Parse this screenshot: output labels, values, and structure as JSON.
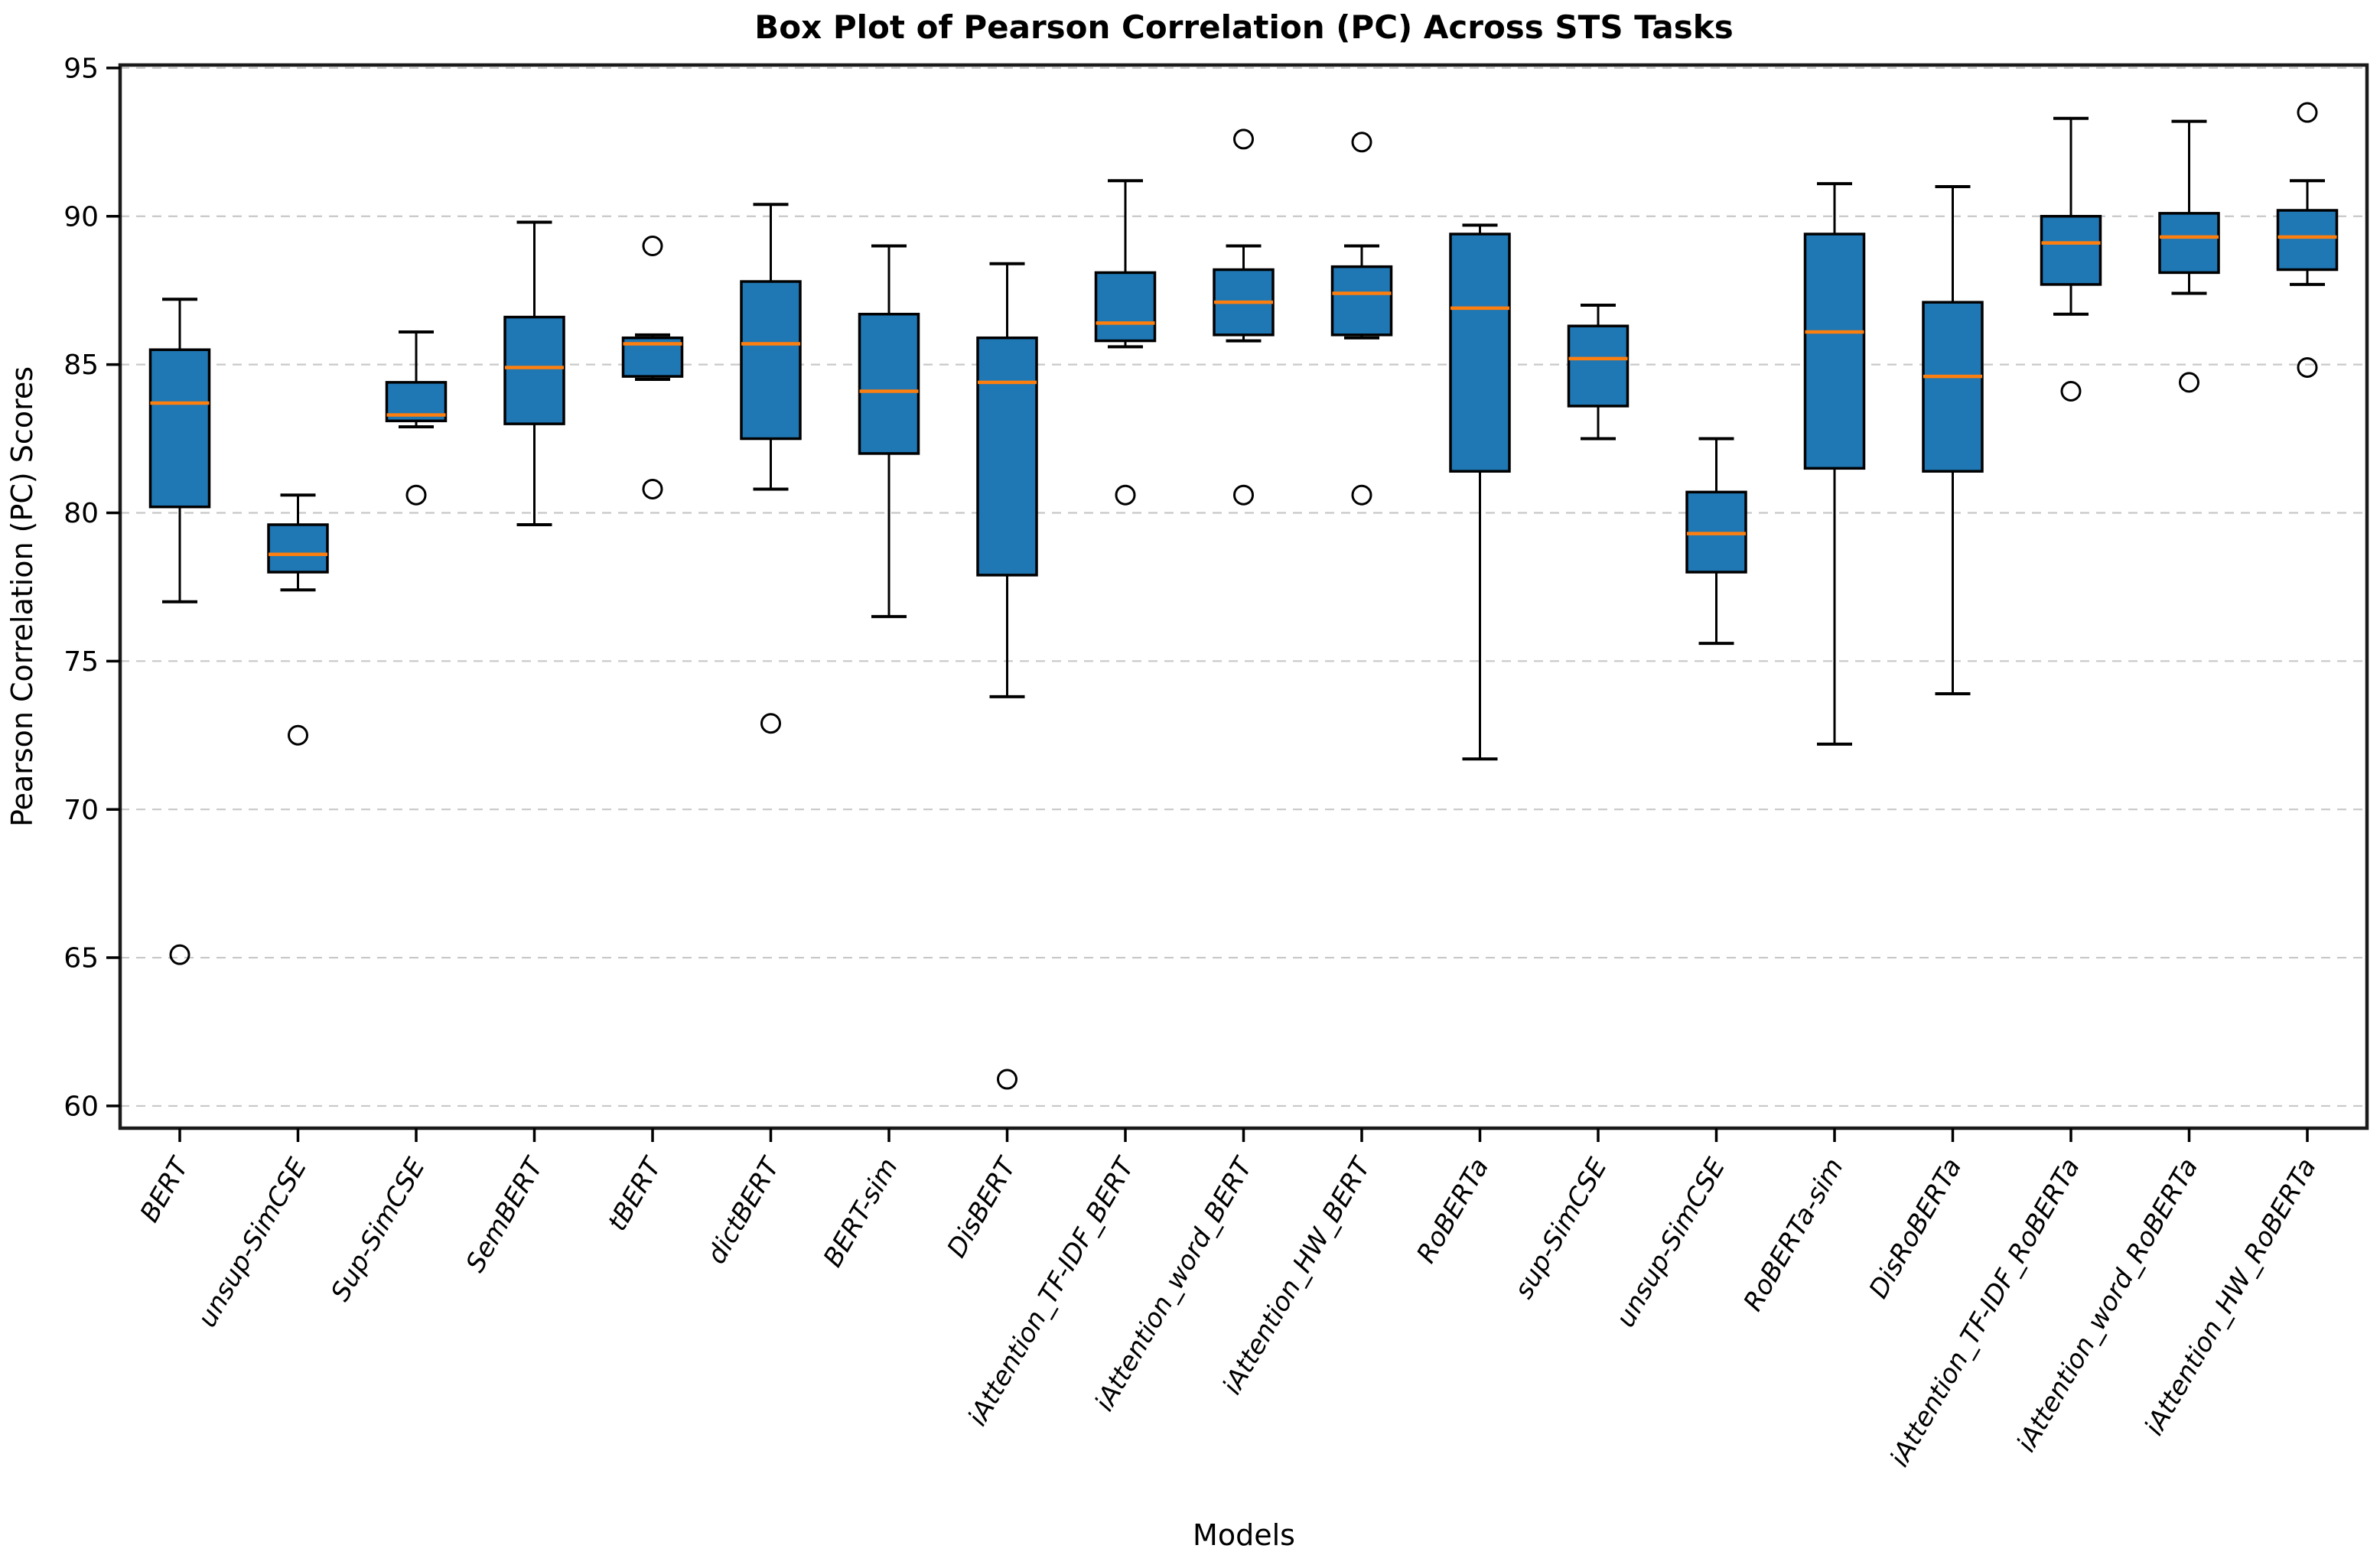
{
  "chart_data": {
    "type": "boxplot",
    "title": "Box Plot of Pearson Correlation (PC) Across STS Tasks",
    "xlabel": "Models",
    "ylabel": "Pearson Correlation (PC) Scores",
    "ylim": [
      59.25,
      95.1
    ],
    "yticks": [
      60,
      65,
      70,
      75,
      80,
      85,
      90,
      95
    ],
    "grid": "horizontal-dashed",
    "legend": "none",
    "colors": {
      "box_fill": "#1f77b4",
      "median": "#ff7f0e",
      "line": "#000000",
      "grid": "#c8c8c8",
      "background": "#ffffff"
    },
    "boxes": [
      {
        "label": "BERT",
        "whislo": 77.0,
        "q1": 80.2,
        "med": 83.7,
        "q3": 85.5,
        "whishi": 87.2,
        "fliers": [
          65.1
        ]
      },
      {
        "label": "unsup-SimCSE",
        "whislo": 77.4,
        "q1": 78.0,
        "med": 78.6,
        "q3": 79.6,
        "whishi": 80.6,
        "fliers": [
          72.5
        ]
      },
      {
        "label": "Sup-SimCSE",
        "whislo": 82.9,
        "q1": 83.1,
        "med": 83.3,
        "q3": 84.4,
        "whishi": 86.1,
        "fliers": [
          80.6
        ]
      },
      {
        "label": "SemBERT",
        "whislo": 79.6,
        "q1": 83.0,
        "med": 84.9,
        "q3": 86.6,
        "whishi": 89.8,
        "fliers": []
      },
      {
        "label": "tBERT",
        "whislo": 84.5,
        "q1": 84.6,
        "med": 85.7,
        "q3": 85.9,
        "whishi": 86.0,
        "fliers": [
          89.0,
          80.8
        ]
      },
      {
        "label": "dictBERT",
        "whislo": 80.8,
        "q1": 82.5,
        "med": 85.7,
        "q3": 87.8,
        "whishi": 90.4,
        "fliers": [
          72.9
        ]
      },
      {
        "label": "BERT-sim",
        "whislo": 76.5,
        "q1": 82.0,
        "med": 84.1,
        "q3": 86.7,
        "whishi": 89.0,
        "fliers": []
      },
      {
        "label": "DisBERT",
        "whislo": 73.8,
        "q1": 77.9,
        "med": 84.4,
        "q3": 85.9,
        "whishi": 88.4,
        "fliers": [
          60.9
        ]
      },
      {
        "label": "iAttention_TF-IDF_BERT",
        "whislo": 85.6,
        "q1": 85.8,
        "med": 86.4,
        "q3": 88.1,
        "whishi": 91.2,
        "fliers": [
          80.6
        ]
      },
      {
        "label": "iAttention_word_BERT",
        "whislo": 85.8,
        "q1": 86.0,
        "med": 87.1,
        "q3": 88.2,
        "whishi": 89.0,
        "fliers": [
          92.6,
          80.6
        ]
      },
      {
        "label": "iAttention_HW_BERT",
        "whislo": 85.9,
        "q1": 86.0,
        "med": 87.4,
        "q3": 88.3,
        "whishi": 89.0,
        "fliers": [
          92.5,
          80.6
        ]
      },
      {
        "label": "RoBERTa",
        "whislo": 71.7,
        "q1": 81.4,
        "med": 86.9,
        "q3": 89.4,
        "whishi": 89.7,
        "fliers": []
      },
      {
        "label": "sup-SimCSE",
        "whislo": 82.5,
        "q1": 83.6,
        "med": 85.2,
        "q3": 86.3,
        "whishi": 87.0,
        "fliers": []
      },
      {
        "label": "unsup-SimCSE",
        "whislo": 75.6,
        "q1": 78.0,
        "med": 79.3,
        "q3": 80.7,
        "whishi": 82.5,
        "fliers": []
      },
      {
        "label": "RoBERTa-sim",
        "whislo": 72.2,
        "q1": 81.5,
        "med": 86.1,
        "q3": 89.4,
        "whishi": 91.1,
        "fliers": []
      },
      {
        "label": "DisRoBERTa",
        "whislo": 73.9,
        "q1": 81.4,
        "med": 84.6,
        "q3": 87.1,
        "whishi": 91.0,
        "fliers": []
      },
      {
        "label": "iAttention_TF-IDF_RoBERTa",
        "whislo": 86.7,
        "q1": 87.7,
        "med": 89.1,
        "q3": 90.0,
        "whishi": 93.3,
        "fliers": [
          84.1
        ]
      },
      {
        "label": "iAttention_word_RoBERTa",
        "whislo": 87.4,
        "q1": 88.1,
        "med": 89.3,
        "q3": 90.1,
        "whishi": 93.2,
        "fliers": [
          84.4
        ]
      },
      {
        "label": "iAttention_HW_RoBERTa",
        "whislo": 87.7,
        "q1": 88.2,
        "med": 89.3,
        "q3": 90.2,
        "whishi": 91.2,
        "fliers": [
          93.5,
          84.9
        ]
      }
    ]
  }
}
